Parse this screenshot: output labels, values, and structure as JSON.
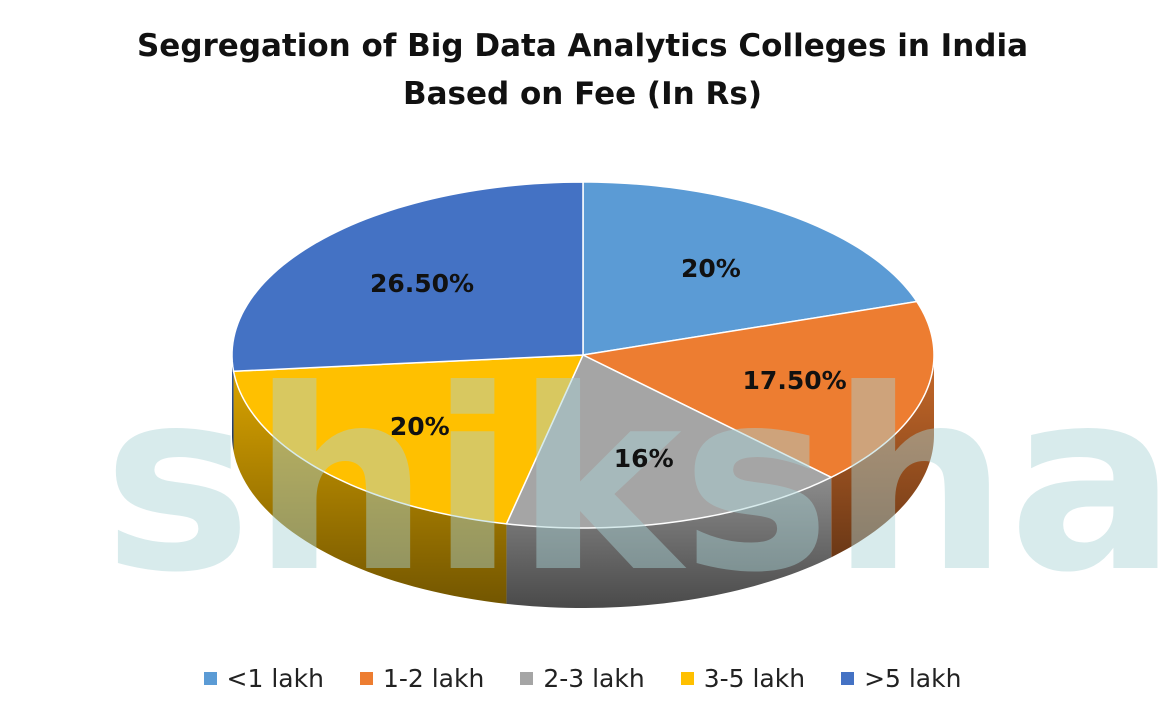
{
  "chart_data": {
    "type": "pie",
    "title_line1": "Segregation of Big Data Analytics Colleges in India",
    "title_line2": "Based on Fee (In Rs)",
    "categories": [
      "<1 lakh",
      "1-2 lakh",
      "2-3 lakh",
      "3-5 lakh",
      ">5 lakh"
    ],
    "values": [
      20,
      17.5,
      16,
      20,
      26.5
    ],
    "data_labels": [
      "20%",
      "17.50%",
      "16%",
      "20%",
      "26.50%"
    ],
    "colors": [
      "#5b9bd5",
      "#ed7d31",
      "#a5a5a5",
      "#ffc000",
      "#4472c4"
    ],
    "style": "3d",
    "legend_position": "bottom"
  },
  "watermark": {
    "text": "shiksha",
    "color": "#a9d3d6"
  }
}
